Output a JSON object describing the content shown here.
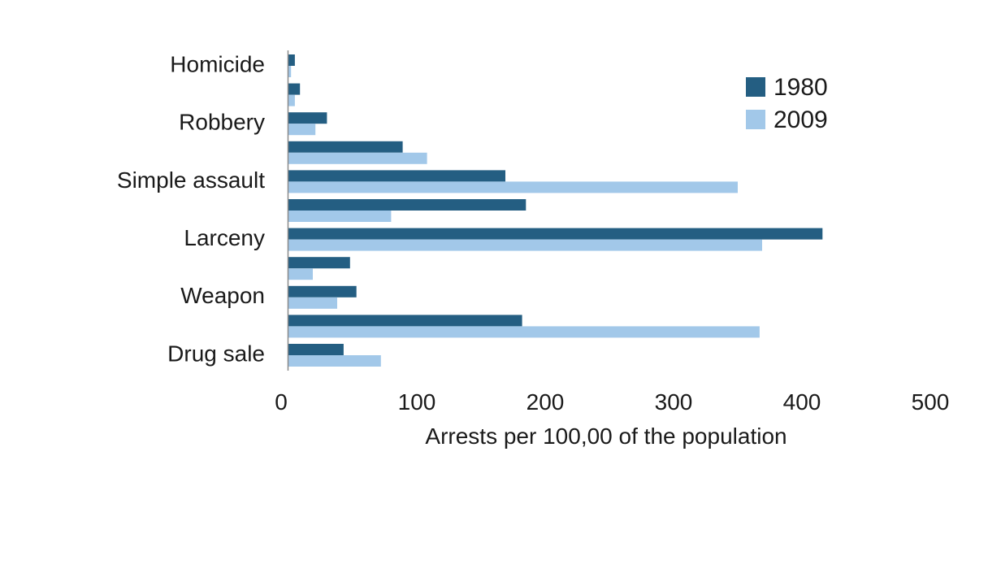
{
  "chart_data": {
    "type": "bar",
    "orientation": "horizontal",
    "title": "",
    "xlabel": "Arrests per 100,00 of the population",
    "ylabel": "",
    "xlim": [
      0,
      500
    ],
    "xticks": [
      0,
      100,
      200,
      300,
      400,
      500
    ],
    "grid": false,
    "legend_position": "top-right",
    "categories": [
      "Homicide",
      "",
      "Robbery",
      "",
      "Simple assault",
      "",
      "Larceny",
      "",
      "Weapon",
      "",
      "Drug sale",
      ""
    ],
    "series": [
      {
        "name": "1980",
        "color": "#245e82",
        "values": [
          5,
          9,
          30,
          89,
          169,
          185,
          416,
          48,
          53,
          182,
          43,
          null
        ]
      },
      {
        "name": "2009",
        "color": "#a2c8e9",
        "values": [
          2,
          5,
          21,
          108,
          350,
          80,
          369,
          19,
          38,
          367,
          72,
          null
        ]
      }
    ]
  }
}
